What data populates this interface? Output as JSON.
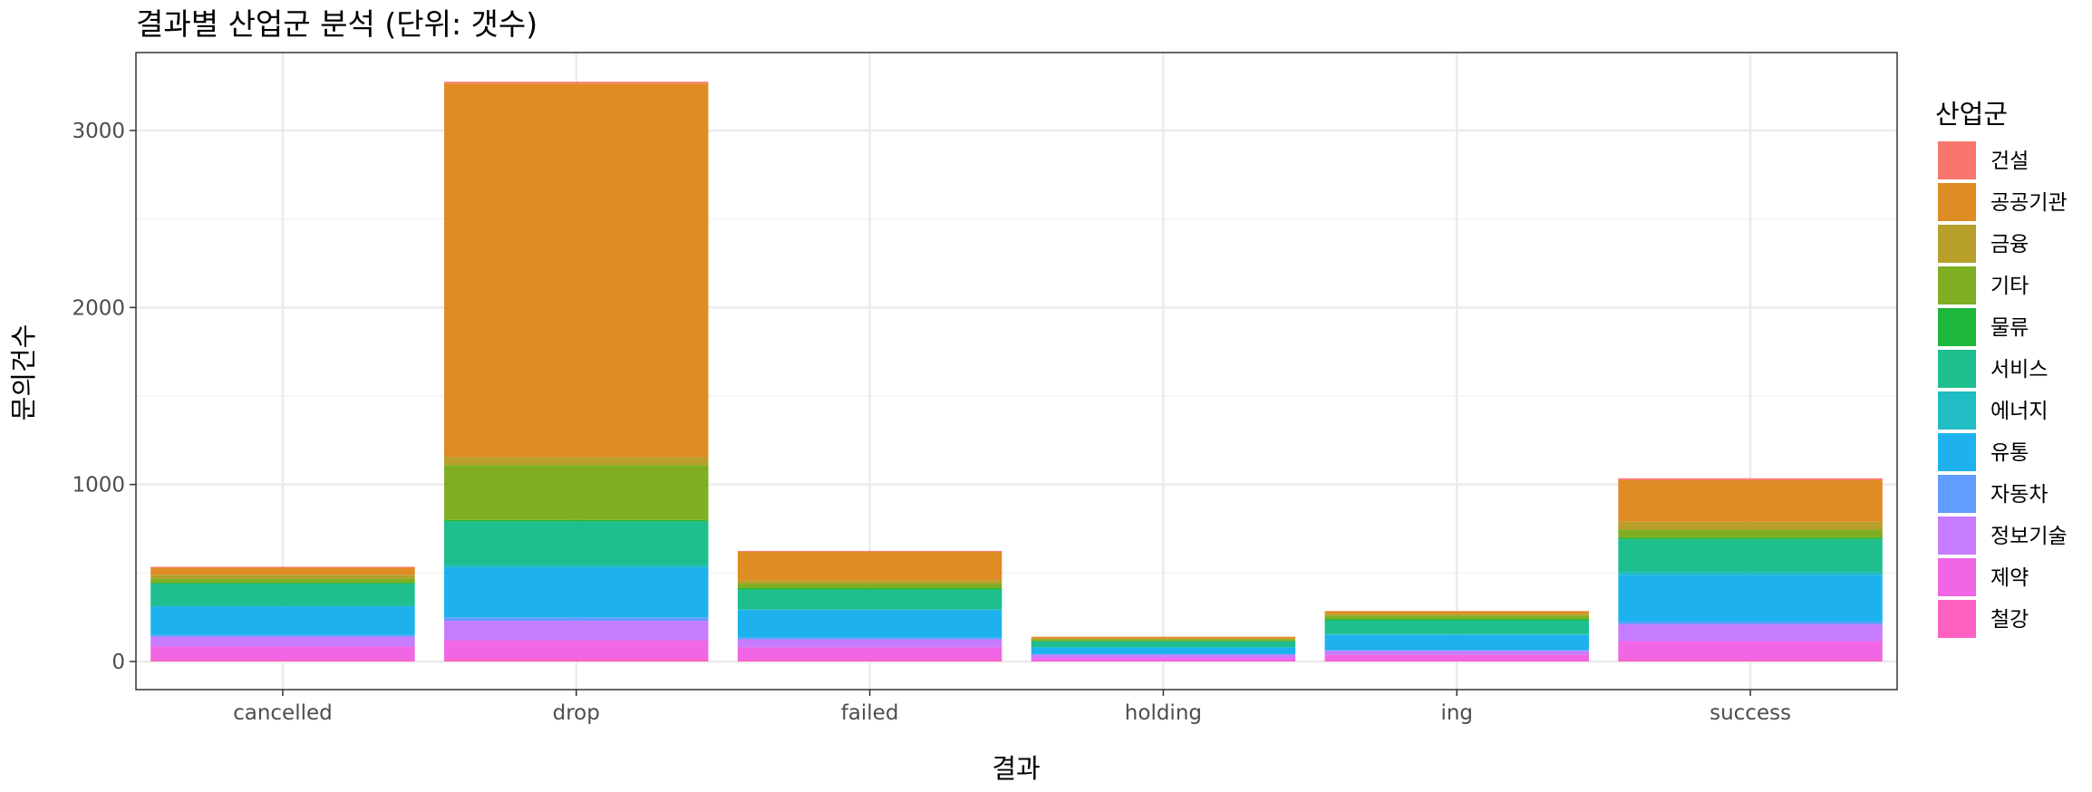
{
  "chart_data": {
    "type": "bar",
    "stacked": true,
    "title": "결과별 산업군 분석 (단위: 갯수)",
    "xlabel": "결과",
    "ylabel": "문의건수",
    "ylim": [
      0,
      3600
    ],
    "yticks": [
      0,
      1000,
      2000,
      3000
    ],
    "grid": true,
    "legend_position": "right",
    "legend_title": "산업군",
    "categories": [
      "cancelled",
      "drop",
      "failed",
      "holding",
      "ing",
      "success"
    ],
    "series": [
      {
        "name": "건설",
        "color": "#F8766D",
        "values": [
          5,
          10,
          5,
          0,
          0,
          10
        ]
      },
      {
        "name": "공공기관",
        "color": "#DE8C23",
        "values": [
          40,
          2110,
          160,
          10,
          15,
          235
        ]
      },
      {
        "name": "금융",
        "color": "#B79F2A",
        "values": [
          20,
          45,
          20,
          5,
          10,
          45
        ]
      },
      {
        "name": "기타",
        "color": "#7FAE22",
        "values": [
          25,
          310,
          25,
          10,
          20,
          45
        ]
      },
      {
        "name": "물류",
        "color": "#1DB73C",
        "values": [
          5,
          10,
          10,
          0,
          10,
          10
        ]
      },
      {
        "name": "서비스",
        "color": "#1EBE8F",
        "values": [
          125,
          245,
          110,
          35,
          75,
          185
        ]
      },
      {
        "name": "에너지",
        "color": "#20BDC4",
        "values": [
          5,
          15,
          5,
          0,
          5,
          15
        ]
      },
      {
        "name": "유통",
        "color": "#1DB2EE",
        "values": [
          160,
          280,
          155,
          40,
          85,
          265
        ]
      },
      {
        "name": "자동차",
        "color": "#619CFF",
        "values": [
          10,
          20,
          10,
          0,
          5,
          15
        ]
      },
      {
        "name": "정보기술",
        "color": "#C77CFF",
        "values": [
          55,
          110,
          45,
          20,
          20,
          95
        ]
      },
      {
        "name": "제약",
        "color": "#F066E4",
        "values": [
          75,
          105,
          70,
          20,
          35,
          105
        ]
      },
      {
        "name": "철강",
        "color": "#FF61C3",
        "values": [
          10,
          15,
          10,
          0,
          5,
          10
        ]
      }
    ]
  }
}
